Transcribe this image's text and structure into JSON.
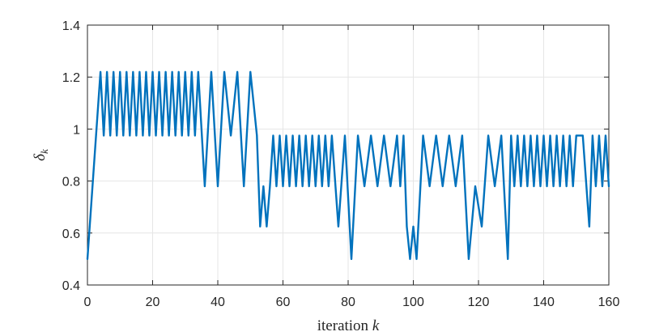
{
  "chart_data": {
    "type": "line",
    "title": "",
    "xlabel_text": "iteration ",
    "xlabel_var": "k",
    "ylabel_symbol": "δ",
    "ylabel_sub": "k",
    "xlim": [
      0,
      160
    ],
    "ylim": [
      0.4,
      1.4
    ],
    "grid": true,
    "x_ticks": [
      {
        "value": 0,
        "label": "0"
      },
      {
        "value": 20,
        "label": "20"
      },
      {
        "value": 40,
        "label": "40"
      },
      {
        "value": 60,
        "label": "60"
      },
      {
        "value": 80,
        "label": "80"
      },
      {
        "value": 100,
        "label": "100"
      },
      {
        "value": 120,
        "label": "120"
      },
      {
        "value": 140,
        "label": "140"
      },
      {
        "value": 160,
        "label": "160"
      }
    ],
    "y_ticks": [
      {
        "value": 0.4,
        "label": "0.4"
      },
      {
        "value": 0.6,
        "label": "0.6"
      },
      {
        "value": 0.8,
        "label": "0.8"
      },
      {
        "value": 1.0,
        "label": "1"
      },
      {
        "value": 1.2,
        "label": "1.2"
      },
      {
        "value": 1.4,
        "label": "1.4"
      }
    ],
    "series": [
      {
        "color": "#0072bd",
        "x": [
          0,
          4,
          5,
          6,
          7,
          8,
          9,
          10,
          11,
          12,
          13,
          14,
          15,
          16,
          17,
          18,
          19,
          20,
          21,
          22,
          23,
          24,
          25,
          26,
          27,
          28,
          29,
          30,
          31,
          32,
          33,
          34,
          36,
          38,
          40,
          42,
          44,
          46,
          48,
          50,
          52,
          53,
          54,
          55,
          56,
          57,
          58,
          59,
          60,
          61,
          62,
          63,
          64,
          65,
          66,
          67,
          68,
          69,
          70,
          71,
          72,
          73,
          74,
          75,
          77,
          79,
          81,
          83,
          85,
          87,
          89,
          91,
          93,
          95,
          96,
          97,
          98,
          99,
          100,
          101,
          103,
          105,
          107,
          109,
          111,
          113,
          115,
          117,
          119,
          121,
          123,
          125,
          127,
          129,
          130,
          131,
          132,
          133,
          134,
          135,
          136,
          137,
          138,
          139,
          140,
          141,
          142,
          143,
          144,
          145,
          146,
          147,
          148,
          149,
          150,
          152,
          154,
          155,
          156,
          157,
          158,
          159,
          160
        ],
        "y": [
          0.5,
          1.22,
          0.975,
          1.22,
          0.975,
          1.22,
          0.975,
          1.22,
          0.975,
          1.22,
          0.975,
          1.22,
          0.975,
          1.22,
          0.975,
          1.22,
          0.975,
          1.22,
          0.975,
          1.22,
          0.975,
          1.22,
          0.975,
          1.22,
          0.975,
          1.22,
          0.975,
          1.22,
          0.975,
          1.22,
          0.975,
          1.22,
          0.78,
          1.22,
          0.78,
          1.22,
          0.975,
          1.22,
          0.78,
          1.22,
          0.975,
          0.625,
          0.78,
          0.625,
          0.78,
          0.975,
          0.78,
          0.975,
          0.78,
          0.975,
          0.78,
          0.975,
          0.78,
          0.975,
          0.78,
          0.975,
          0.78,
          0.975,
          0.78,
          0.975,
          0.78,
          0.975,
          0.78,
          0.975,
          0.625,
          0.975,
          0.5,
          0.975,
          0.78,
          0.975,
          0.78,
          0.975,
          0.78,
          0.975,
          0.78,
          0.975,
          0.625,
          0.5,
          0.625,
          0.5,
          0.975,
          0.78,
          0.975,
          0.78,
          0.975,
          0.78,
          0.975,
          0.5,
          0.78,
          0.625,
          0.975,
          0.78,
          0.975,
          0.5,
          0.975,
          0.78,
          0.975,
          0.78,
          0.975,
          0.78,
          0.975,
          0.78,
          0.975,
          0.78,
          0.975,
          0.78,
          0.975,
          0.78,
          0.975,
          0.78,
          0.975,
          0.78,
          0.975,
          0.78,
          0.975,
          0.975,
          0.625,
          0.975,
          0.78,
          0.975,
          0.78,
          0.975,
          0.78
        ]
      }
    ]
  }
}
